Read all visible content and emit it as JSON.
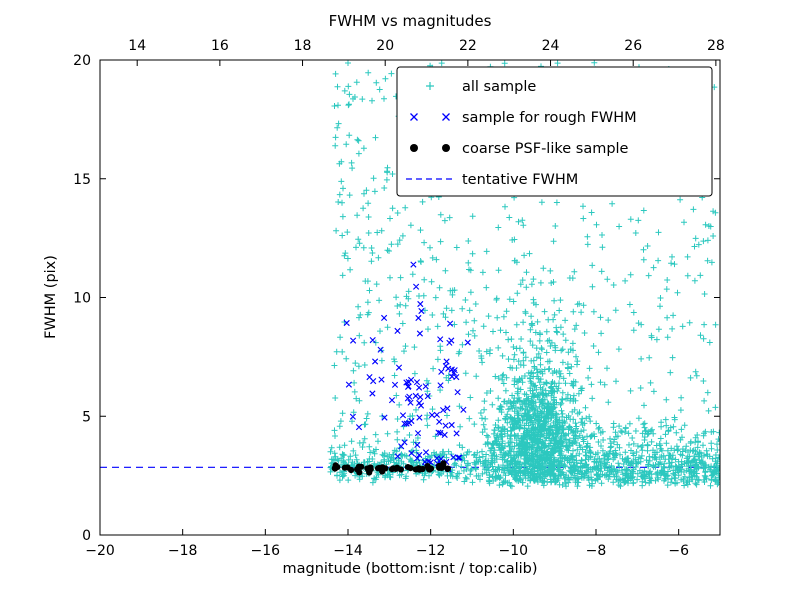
{
  "title": "FWHM vs magnitudes",
  "axes": {
    "xlabel": "magnitude (bottom:isnt / top:calib)",
    "ylabel": "FWHM (pix)"
  },
  "legend": {
    "entries": [
      {
        "label": "all sample",
        "type": "plus",
        "color": "#2cc8bf"
      },
      {
        "label": "sample for rough FWHM",
        "type": "cross",
        "color": "#0000ff"
      },
      {
        "label": "coarse PSF-like sample",
        "type": "dot",
        "color": "#000000"
      },
      {
        "label": "tentative FWHM",
        "type": "dashed-line",
        "color": "#0000ff"
      }
    ]
  },
  "chart_data": {
    "type": "scatter",
    "title": "FWHM vs magnitudes",
    "xlabel": "magnitude (bottom:isnt / top:calib)",
    "ylabel": "FWHM (pix)",
    "xlim": [
      -20,
      -5
    ],
    "ylim": [
      0,
      20
    ],
    "x_bottom_ticks": [
      -20,
      -18,
      -16,
      -14,
      -12,
      -10,
      -8,
      -6
    ],
    "x_top_ticks": [
      14,
      16,
      18,
      20,
      22,
      24,
      26,
      28
    ],
    "top_axis_offset": 33.1,
    "y_ticks": [
      0,
      5,
      10,
      15,
      20
    ],
    "grid": false,
    "legend_position": "upper center-right",
    "tentative_line": {
      "y": 2.85,
      "color": "#0000ff",
      "style": "dashed"
    },
    "seed": 42,
    "series": [
      {
        "name": "all sample",
        "marker": "plus",
        "color": "#2cc8bf",
        "clusters": [
          {
            "n": 650,
            "x": [
              "u",
              -10.7,
              -5.0
            ],
            "y": [
              "g",
              2.85,
              0.45
            ],
            "yclip": [
              2.05,
              20
            ]
          },
          {
            "n": 320,
            "x": [
              "u",
              -10.7,
              -5.0
            ],
            "y": [
              "u",
              2.2,
              4.6
            ]
          },
          {
            "n": 780,
            "x": [
              "g",
              -9.4,
              0.55
            ],
            "y": [
              "g",
              4.3,
              1.15
            ],
            "yclip": [
              2.2,
              20
            ]
          },
          {
            "n": 160,
            "x": [
              "g",
              -9.4,
              0.6
            ],
            "y": [
              "g",
              7.0,
              1.6
            ],
            "yclip": [
              2.5,
              20
            ]
          },
          {
            "n": 300,
            "x": [
              "u",
              -14.45,
              -10.7
            ],
            "y": [
              "g",
              2.95,
              0.35
            ],
            "yclip": [
              2.2,
              20
            ]
          },
          {
            "n": 340,
            "x": [
              "u",
              -14.35,
              -10.7
            ],
            "y": [
              "u",
              3.2,
              19.9
            ]
          },
          {
            "n": 340,
            "x": [
              "u",
              -10.7,
              -5.1
            ],
            "y": [
              "u",
              3.8,
              19.9
            ]
          }
        ]
      },
      {
        "name": "sample for rough FWHM",
        "marker": "cross",
        "color": "#0000ff",
        "clusters": [
          {
            "n": 26,
            "x": [
              "g",
              -12.45,
              0.45
            ],
            "y": [
              "g",
              5.4,
              1.1
            ],
            "yclip": [
              3.0,
              11.5
            ]
          },
          {
            "n": 28,
            "x": [
              "u",
              -14.2,
              -11.3
            ],
            "y": [
              "u",
              3.1,
              9.2
            ]
          },
          {
            "n": 14,
            "x": [
              "g",
              -12.35,
              0.12
            ],
            "y": [
              "u",
              3.2,
              11.5
            ]
          },
          {
            "n": 16,
            "x": [
              "g",
              -11.55,
              0.18
            ],
            "y": [
              "g",
              6.3,
              1.4
            ],
            "yclip": [
              3.2,
              9.0
            ]
          },
          {
            "n": 12,
            "x": [
              "u",
              -12.3,
              -11.15
            ],
            "y": [
              "g",
              3.15,
              0.18
            ]
          }
        ]
      },
      {
        "name": "coarse PSF-like sample",
        "marker": "dot",
        "color": "#000000",
        "clusters": [
          {
            "n": 44,
            "x": [
              "u",
              -14.32,
              -11.55
            ],
            "y": [
              "g",
              2.8,
              0.07
            ]
          }
        ]
      }
    ]
  }
}
